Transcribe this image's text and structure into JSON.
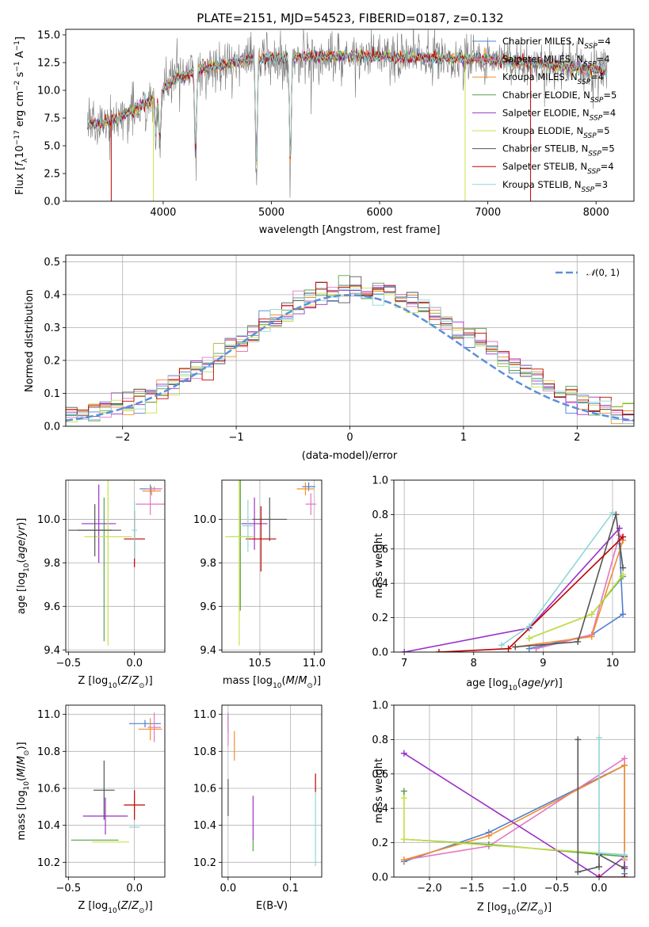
{
  "title": "PLATE=2151, MJD=54523, FIBERID=0187, z=0.132",
  "colors": {
    "Chabrier MILES": "#4f7fd0",
    "Salpeter MILES": "#e377c2",
    "Kroupa MILES": "#f28e2b",
    "Chabrier ELODIE": "#59a14f",
    "Salpeter ELODIE": "#9b30c8",
    "Kroupa ELODIE": "#c8e04a",
    "Chabrier STELIB": "#555555",
    "Salpeter STELIB": "#c00000",
    "Kroupa STELIB": "#8fd6d6",
    "gauss": "#5b8fd8"
  },
  "chart_data": [
    {
      "id": "spectrum",
      "type": "line",
      "xlabel": "wavelength [Angstrom, rest frame]",
      "ylabel": "Flux [f_λ 10^-17 erg cm^-2 s^-1 A^-1]",
      "xlim": [
        3100,
        8350
      ],
      "ylim": [
        0,
        15.5
      ],
      "xticks": [
        4000,
        5000,
        6000,
        7000,
        8000
      ],
      "yticks": [
        0.0,
        2.5,
        5.0,
        7.5,
        10.0,
        12.5,
        15.0
      ],
      "legend_position": "upper right",
      "legend": [
        "Chabrier MILES, N_SSP=4",
        "Salpeter MILES, N_SSP=4",
        "Kroupa MILES, N_SSP=4",
        "Chabrier ELODIE, N_SSP=5",
        "Salpeter ELODIE, N_SSP=4",
        "Kroupa ELODIE, N_SSP=5",
        "Chabrier STELIB, N_SSP=5",
        "Salpeter STELIB, N_SSP=4",
        "Kroupa STELIB, N_SSP=3"
      ],
      "data_x_range": [
        3300,
        8100
      ],
      "continuum_anchors": [
        [
          3300,
          6.8
        ],
        [
          3600,
          7.5
        ],
        [
          3900,
          9.2
        ],
        [
          4100,
          11.0
        ],
        [
          4400,
          12.0
        ],
        [
          4800,
          12.8
        ],
        [
          5200,
          13.0
        ],
        [
          5800,
          13.1
        ],
        [
          6400,
          12.9
        ],
        [
          7000,
          12.8
        ],
        [
          7500,
          12.4
        ],
        [
          8100,
          11.8
        ]
      ],
      "absorption_dips": [
        [
          3933,
          4.0
        ],
        [
          3969,
          5.5
        ],
        [
          4300,
          8.5
        ],
        [
          4861,
          11.5
        ],
        [
          5175,
          12.0
        ]
      ]
    },
    {
      "id": "residuals",
      "type": "histogram",
      "xlabel": "(data-model)/error",
      "ylabel": "Normed distribution",
      "xlim": [
        -2.5,
        2.5
      ],
      "ylim": [
        0,
        0.52
      ],
      "xticks": [
        -2,
        -1,
        0,
        1,
        2
      ],
      "yticks": [
        0.0,
        0.1,
        0.2,
        0.3,
        0.4,
        0.5
      ],
      "grid": true,
      "legend_position": "upper right",
      "legend": [
        "N(0,1)"
      ],
      "bin_width": 0.1,
      "reference": "normal(0,1)"
    },
    {
      "id": "age_vs_Z",
      "type": "errorbar",
      "xlabel": "Z [log10(Z/Z☉)]",
      "ylabel": "age  [log10(age/yr)]",
      "xlim": [
        -0.52,
        0.23
      ],
      "ylim": [
        9.39,
        10.18
      ],
      "xticks": [
        -0.5,
        0.0
      ],
      "yticks": [
        9.4,
        9.6,
        9.8,
        10.0
      ],
      "grid": true,
      "points": [
        {
          "model": "Chabrier MILES",
          "x": 0.12,
          "y": 10.14,
          "xerr": 0.08,
          "yerr": 0.02
        },
        {
          "model": "Salpeter MILES",
          "x": 0.15,
          "y": 10.14,
          "xerr": 0.06,
          "yerr": 0.01
        },
        {
          "model": "Kroupa MILES",
          "x": 0.13,
          "y": 10.13,
          "xerr": 0.07,
          "yerr": 0.02
        },
        {
          "model": "Salpeter MILES",
          "x": 0.12,
          "y": 10.07,
          "xerr": 0.11,
          "yerr": 0.05
        },
        {
          "model": "Chabrier ELODIE",
          "x": -0.23,
          "y": 9.77,
          "xerr": 0.0,
          "yerr": 0.33
        },
        {
          "model": "Salpeter ELODIE",
          "x": -0.27,
          "y": 9.98,
          "xerr": 0.13,
          "yerr": 0.18
        },
        {
          "model": "Kroupa ELODIE",
          "x": -0.2,
          "y": 9.92,
          "xerr": 0.18,
          "yerr": 0.5
        },
        {
          "model": "Chabrier STELIB",
          "x": -0.3,
          "y": 9.95,
          "xerr": 0.13,
          "yerr": 0.12
        },
        {
          "model": "Salpeter STELIB",
          "x": 0.0,
          "y": 9.91,
          "xerr": 0.08,
          "yerr": 0.13
        },
        {
          "model": "Kroupa STELIB",
          "x": 0.0,
          "y": 9.95,
          "xerr": 0.02,
          "yerr": 0.13
        },
        {
          "model": "Chabrier STELIB",
          "x": -0.3,
          "y": 9.95,
          "xerr": 0.2,
          "yerr": 0.0
        }
      ]
    },
    {
      "id": "age_vs_mass",
      "type": "errorbar",
      "xlabel": "mass [log10(M/M☉)]",
      "ylabel": "",
      "xlim": [
        10.15,
        11.07
      ],
      "ylim": [
        9.39,
        10.18
      ],
      "xticks": [
        10.5,
        11.0
      ],
      "yticks": [
        9.4,
        9.6,
        9.8,
        10.0
      ],
      "grid": true,
      "points": [
        {
          "model": "Chabrier MILES",
          "x": 10.95,
          "y": 10.15,
          "xerr": 0.06,
          "yerr": 0.02
        },
        {
          "model": "Salpeter MILES",
          "x": 10.97,
          "y": 10.07,
          "xerr": 0.05,
          "yerr": 0.05
        },
        {
          "model": "Kroupa MILES",
          "x": 10.92,
          "y": 10.14,
          "xerr": 0.08,
          "yerr": 0.03
        },
        {
          "model": "Chabrier ELODIE",
          "x": 10.32,
          "y": 9.92,
          "xerr": 0.1,
          "yerr": 0.34
        },
        {
          "model": "Salpeter ELODIE",
          "x": 10.45,
          "y": 9.98,
          "xerr": 0.12,
          "yerr": 0.12
        },
        {
          "model": "Kroupa ELODIE",
          "x": 10.31,
          "y": 9.92,
          "xerr": 0.13,
          "yerr": 0.5
        },
        {
          "model": "Chabrier STELIB",
          "x": 10.59,
          "y": 10.0,
          "xerr": 0.16,
          "yerr": 0.1
        },
        {
          "model": "Salpeter STELIB",
          "x": 10.51,
          "y": 9.91,
          "xerr": 0.14,
          "yerr": 0.15
        },
        {
          "model": "Kroupa STELIB",
          "x": 10.39,
          "y": 9.97,
          "xerr": 0.05,
          "yerr": 0.12
        }
      ]
    },
    {
      "id": "mass_weight_vs_age",
      "type": "line",
      "xlabel": "age  [log10(age/yr)]",
      "ylabel": "mass weight",
      "xlim": [
        6.85,
        10.32
      ],
      "ylim": [
        0,
        1.0
      ],
      "xticks": [
        7,
        8,
        9,
        10
      ],
      "yticks": [
        0.0,
        0.2,
        0.4,
        0.6,
        0.8,
        1.0
      ],
      "grid": true,
      "series": [
        {
          "model": "Chabrier MILES",
          "x": [
            8.8,
            9.7,
            10.15,
            10.1
          ],
          "y": [
            0.02,
            0.1,
            0.22,
            0.63
          ]
        },
        {
          "model": "Salpeter MILES",
          "x": [
            8.9,
            9.7,
            10.1,
            10.15
          ],
          "y": [
            0.02,
            0.1,
            0.68,
            0.65
          ]
        },
        {
          "model": "Kroupa MILES",
          "x": [
            8.6,
            9.7,
            10.15
          ],
          "y": [
            0.03,
            0.09,
            0.65
          ]
        },
        {
          "model": "Chabrier ELODIE",
          "x": [
            8.8,
            9.7,
            10.15
          ],
          "y": [
            0.08,
            0.22,
            0.44
          ]
        },
        {
          "model": "Salpeter ELODIE",
          "x": [
            7.0,
            8.8,
            10.1
          ],
          "y": [
            0.0,
            0.14,
            0.72
          ]
        },
        {
          "model": "Kroupa ELODIE",
          "x": [
            8.8,
            9.7,
            10.15
          ],
          "y": [
            0.08,
            0.22,
            0.45
          ]
        },
        {
          "model": "Chabrier STELIB",
          "x": [
            8.6,
            9.5,
            10.05,
            10.15
          ],
          "y": [
            0.03,
            0.06,
            0.8,
            0.49
          ]
        },
        {
          "model": "Salpeter STELIB",
          "x": [
            7.5,
            8.5,
            10.15
          ],
          "y": [
            0.0,
            0.02,
            0.67
          ]
        },
        {
          "model": "Kroupa STELIB",
          "x": [
            8.4,
            8.8,
            10.0
          ],
          "y": [
            0.04,
            0.15,
            0.81
          ]
        }
      ]
    },
    {
      "id": "mass_vs_Z",
      "type": "errorbar",
      "xlabel": "Z [log10(Z/Z☉)]",
      "ylabel": "mass [log10(M/M☉)]",
      "xlim": [
        -0.52,
        0.23
      ],
      "ylim": [
        10.12,
        11.05
      ],
      "xticks": [
        -0.5,
        0.0
      ],
      "yticks": [
        10.2,
        10.4,
        10.6,
        10.8,
        11.0
      ],
      "grid": true,
      "points": [
        {
          "model": "Chabrier MILES",
          "x": 0.08,
          "y": 10.95,
          "xerr": 0.12,
          "yerr": 0.02
        },
        {
          "model": "Salpeter MILES",
          "x": 0.15,
          "y": 10.93,
          "xerr": 0.05,
          "yerr": 0.08
        },
        {
          "model": "Kroupa MILES",
          "x": 0.12,
          "y": 10.92,
          "xerr": 0.09,
          "yerr": 0.06
        },
        {
          "model": "Chabrier ELODIE",
          "x": -0.3,
          "y": 10.32,
          "xerr": 0.18,
          "yerr": 0.0
        },
        {
          "model": "Salpeter ELODIE",
          "x": -0.22,
          "y": 10.45,
          "xerr": 0.17,
          "yerr": 0.1
        },
        {
          "model": "Kroupa ELODIE",
          "x": -0.18,
          "y": 10.31,
          "xerr": 0.14,
          "yerr": 0.0
        },
        {
          "model": "Chabrier STELIB",
          "x": -0.23,
          "y": 10.59,
          "xerr": 0.08,
          "yerr": 0.16
        },
        {
          "model": "Salpeter STELIB",
          "x": 0.0,
          "y": 10.51,
          "xerr": 0.08,
          "yerr": 0.08
        },
        {
          "model": "Kroupa STELIB",
          "x": 0.0,
          "y": 10.39,
          "xerr": 0.04,
          "yerr": 0.0
        }
      ]
    },
    {
      "id": "mass_vs_EBV",
      "type": "errorbar",
      "xlabel": "E(B-V)",
      "ylabel": "",
      "xlim": [
        -0.01,
        0.15
      ],
      "ylim": [
        10.12,
        11.05
      ],
      "xticks": [
        0.0,
        0.1
      ],
      "yticks": [
        10.2,
        10.4,
        10.6,
        10.8,
        11.0
      ],
      "grid": true,
      "points": [
        {
          "model": "Chabrier MILES",
          "x": 0.0,
          "y": 10.95,
          "xerr": 0.0,
          "yerr": 0.05
        },
        {
          "model": "Salpeter MILES",
          "x": 0.0,
          "y": 10.92,
          "xerr": 0.0,
          "yerr": 0.09
        },
        {
          "model": "Kroupa MILES",
          "x": 0.01,
          "y": 10.83,
          "xerr": 0.0,
          "yerr": 0.08
        },
        {
          "model": "Chabrier ELODIE",
          "x": 0.04,
          "y": 10.29,
          "xerr": 0.0,
          "yerr": 0.03
        },
        {
          "model": "Salpeter ELODIE",
          "x": 0.04,
          "y": 10.44,
          "xerr": 0.0,
          "yerr": 0.12
        },
        {
          "model": "Kroupa ELODIE",
          "x": 0.04,
          "y": 10.31,
          "xerr": 0.0,
          "yerr": 0.0
        },
        {
          "model": "Chabrier STELIB",
          "x": 0.0,
          "y": 10.55,
          "xerr": 0.0,
          "yerr": 0.1
        },
        {
          "model": "Salpeter STELIB",
          "x": 0.14,
          "y": 10.63,
          "xerr": 0.0,
          "yerr": 0.05
        },
        {
          "model": "Kroupa STELIB",
          "x": 0.14,
          "y": 10.38,
          "xerr": 0.0,
          "yerr": 0.2
        }
      ]
    },
    {
      "id": "mass_weight_vs_Z",
      "type": "line",
      "xlabel": "Z [log10(Z/Z☉)]",
      "ylabel": "mass weight",
      "xlim": [
        -2.42,
        0.42
      ],
      "ylim": [
        0,
        1.0
      ],
      "xticks": [
        -2.0,
        -1.5,
        -1.0,
        -0.5,
        0.0
      ],
      "yticks": [
        0.0,
        0.2,
        0.4,
        0.6,
        0.8,
        1.0
      ],
      "grid": true,
      "series": [
        {
          "model": "Chabrier MILES",
          "x": [
            -2.3,
            -1.3,
            0.3,
            0.3
          ],
          "y": [
            0.09,
            0.26,
            0.65,
            0.02
          ]
        },
        {
          "model": "Salpeter MILES",
          "x": [
            -2.3,
            -1.3,
            0.3,
            0.3
          ],
          "y": [
            0.1,
            0.18,
            0.69,
            0.1
          ]
        },
        {
          "model": "Kroupa MILES",
          "x": [
            -2.3,
            -1.3,
            0.3,
            0.3
          ],
          "y": [
            0.1,
            0.24,
            0.65,
            0.05
          ]
        },
        {
          "model": "Chabrier ELODIE",
          "x": [
            -2.3,
            -2.3,
            -1.3,
            0.3,
            0.3
          ],
          "y": [
            0.5,
            0.22,
            0.19,
            0.12,
            0.05
          ]
        },
        {
          "model": "Salpeter ELODIE",
          "x": [
            -2.3,
            0.0,
            0.3,
            0.3
          ],
          "y": [
            0.72,
            0.0,
            0.12,
            0.06
          ]
        },
        {
          "model": "Kroupa ELODIE",
          "x": [
            -2.3,
            -2.3,
            0.3,
            0.3
          ],
          "y": [
            0.46,
            0.22,
            0.13,
            0.11
          ]
        },
        {
          "model": "Chabrier STELIB",
          "x": [
            -0.25,
            -0.25,
            0.0,
            0.0,
            0.3
          ],
          "y": [
            0.8,
            0.03,
            0.06,
            0.13,
            0.05
          ]
        },
        {
          "model": "Salpeter STELIB",
          "x": [
            0.0,
            0.3
          ],
          "y": [
            0.0,
            0.0
          ]
        },
        {
          "model": "Kroupa STELIB",
          "x": [
            0.0,
            0.0,
            0.3
          ],
          "y": [
            0.81,
            0.14,
            0.13
          ]
        }
      ]
    }
  ]
}
